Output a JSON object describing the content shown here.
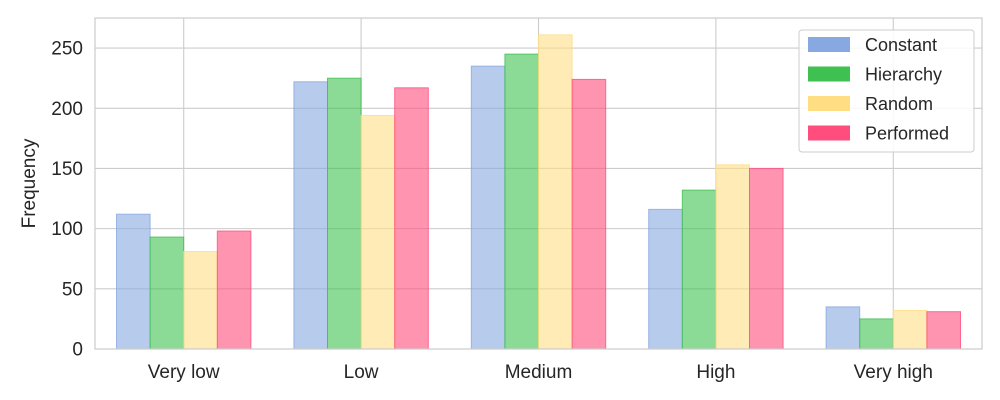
{
  "chart_data": {
    "type": "bar",
    "title": "",
    "xlabel": "",
    "ylabel": "Frequency",
    "categories": [
      "Very low",
      "Low",
      "Medium",
      "High",
      "Very high"
    ],
    "yticks": [
      "0",
      "50",
      "100",
      "150",
      "200",
      "250"
    ],
    "ylim": [
      0,
      275
    ],
    "grid": true,
    "legend_position": "top-right",
    "series": [
      {
        "name": "Constant",
        "color": "#87a8e0",
        "values": [
          112,
          222,
          235,
          116,
          35
        ]
      },
      {
        "name": "Hierarchy",
        "color": "#3ec150",
        "values": [
          93,
          225,
          245,
          132,
          25
        ]
      },
      {
        "name": "Random",
        "color": "#ffdd83",
        "values": [
          81,
          194,
          261,
          153,
          32
        ]
      },
      {
        "name": "Performed",
        "color": "#ff4d7d",
        "values": [
          98,
          217,
          224,
          150,
          31
        ]
      }
    ]
  }
}
